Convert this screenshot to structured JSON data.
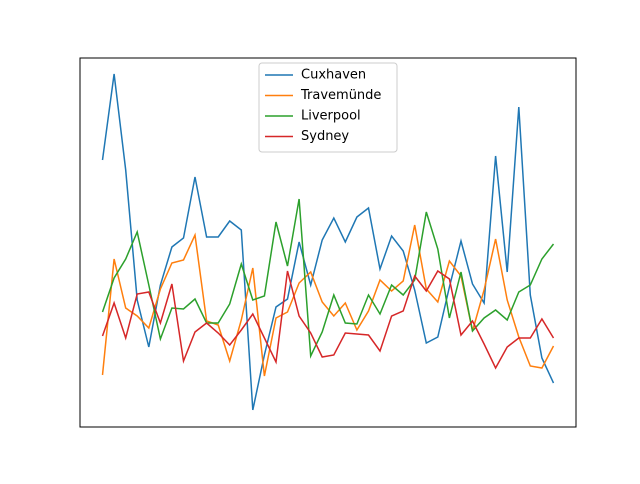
{
  "chart_data": {
    "type": "line",
    "series": [
      {
        "name": "Cuxhaven",
        "color": "#1f77b4",
        "values": [
          267,
          353,
          257,
          127,
          80,
          142,
          180,
          189,
          250,
          190,
          190,
          206,
          197,
          17,
          72,
          120,
          128,
          185,
          142,
          187,
          209,
          185,
          210,
          219,
          158,
          191,
          176,
          137,
          84,
          90,
          140,
          186,
          143,
          124,
          271,
          155,
          320,
          132,
          69,
          44
        ]
      },
      {
        "name": "Travemünde",
        "color": "#ff7f0e",
        "values": [
          52,
          168,
          119,
          111,
          99,
          138,
          164,
          167,
          192,
          106,
          102,
          66,
          107,
          159,
          51,
          109,
          115,
          144,
          155,
          125,
          111,
          124,
          97,
          116,
          147,
          136,
          146,
          202,
          138,
          125,
          166,
          151,
          96,
          137,
          188,
          127,
          90,
          61,
          59,
          81
        ]
      },
      {
        "name": "Liverpool",
        "color": "#2ca02c",
        "values": [
          115,
          149,
          168,
          195,
          142,
          88,
          119,
          118,
          128,
          104,
          104,
          123,
          163,
          127,
          131,
          205,
          161,
          228,
          71,
          95,
          132,
          104,
          103,
          132,
          113,
          142,
          132,
          147,
          215,
          178,
          109,
          155,
          96,
          109,
          117,
          107,
          135,
          142,
          168,
          183
        ]
      },
      {
        "name": "Sydney",
        "color": "#d62728",
        "values": [
          91,
          124,
          89,
          133,
          135,
          104,
          143,
          66,
          95,
          104,
          94,
          82,
          97,
          113,
          89,
          65,
          156,
          111,
          94,
          70,
          72,
          94,
          93,
          92,
          76,
          111,
          116,
          151,
          136,
          156,
          148,
          92,
          106,
          83,
          59,
          80,
          89,
          89,
          108,
          89
        ]
      }
    ],
    "ylim": [
      0,
      369
    ],
    "legend": "upper center"
  }
}
